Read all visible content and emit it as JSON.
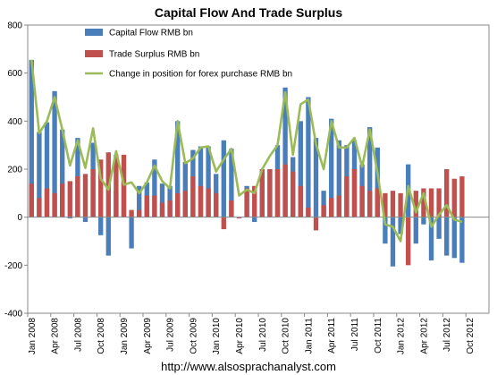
{
  "chart_data": {
    "type": "bar",
    "title": "Capital Flow And Trade Surplus",
    "footer": "http://www.alsosprachanalyst.com",
    "ylim": [
      -400,
      800
    ],
    "yticks": [
      -400,
      -200,
      0,
      200,
      400,
      600,
      800
    ],
    "x_tick_labels": [
      "Jan 2008",
      "Apr 2008",
      "Jul 2008",
      "Oct 2008",
      "Jan 2009",
      "Apr 2009",
      "Jul 2009",
      "Oct 2009",
      "Jan 2010",
      "Apr 2010",
      "Jul 2010",
      "Oct 2010",
      "Jan 2011",
      "Apr 2011",
      "Jul 2011",
      "Oct 2011",
      "Jan 2012",
      "Apr 2012",
      "Jul 2012",
      "Oct 2012"
    ],
    "grid": false,
    "legend_position": "top-left",
    "categories": [
      "2008-01",
      "2008-02",
      "2008-03",
      "2008-04",
      "2008-05",
      "2008-06",
      "2008-07",
      "2008-08",
      "2008-09",
      "2008-10",
      "2008-11",
      "2008-12",
      "2009-01",
      "2009-02",
      "2009-03",
      "2009-04",
      "2009-05",
      "2009-06",
      "2009-07",
      "2009-08",
      "2009-09",
      "2009-10",
      "2009-11",
      "2009-12",
      "2010-01",
      "2010-02",
      "2010-03",
      "2010-04",
      "2010-05",
      "2010-06",
      "2010-07",
      "2010-08",
      "2010-09",
      "2010-10",
      "2010-11",
      "2010-12",
      "2011-01",
      "2011-02",
      "2011-03",
      "2011-04",
      "2011-05",
      "2011-06",
      "2011-07",
      "2011-08",
      "2011-09",
      "2011-10",
      "2011-11",
      "2011-12",
      "2012-01",
      "2012-02",
      "2012-03",
      "2012-04",
      "2012-05",
      "2012-06",
      "2012-07",
      "2012-08",
      "2012-09",
      "2012-10",
      "2012-11",
      "2012-12"
    ],
    "series": [
      {
        "name": "Capital Flow RMB bn",
        "kind": "bar",
        "color": "#4A7EBB",
        "values": [
          655,
          355,
          395,
          525,
          365,
          -5,
          330,
          -20,
          310,
          -75,
          -160,
          110,
          145,
          -130,
          130,
          145,
          240,
          140,
          130,
          400,
          230,
          280,
          295,
          295,
          180,
          320,
          285,
          0,
          130,
          -20,
          190,
          200,
          300,
          540,
          250,
          400,
          500,
          330,
          110,
          410,
          320,
          300,
          320,
          220,
          375,
          290,
          -110,
          -205,
          -70,
          220,
          -110,
          -30,
          -180,
          -90,
          -160,
          -170,
          -190,
          0,
          0,
          0
        ]
      },
      {
        "name": "Trade Surplus RMB bn",
        "kind": "bar",
        "color": "#C0504D",
        "values": [
          140,
          80,
          120,
          100,
          140,
          150,
          170,
          180,
          200,
          240,
          270,
          260,
          260,
          30,
          30,
          90,
          90,
          60,
          70,
          100,
          110,
          170,
          130,
          120,
          100,
          -50,
          70,
          -5,
          120,
          130,
          200,
          200,
          200,
          220,
          190,
          130,
          40,
          -55,
          50,
          80,
          90,
          170,
          200,
          130,
          110,
          120,
          100,
          110,
          100,
          -200,
          110,
          120,
          120,
          120,
          200,
          160,
          170,
          0,
          0,
          0
        ]
      },
      {
        "name": "Change in position for forex purchase RMB bn",
        "kind": "line",
        "color": "#9BBB59",
        "values": [
          655,
          350,
          400,
          500,
          365,
          215,
          320,
          205,
          370,
          160,
          115,
          275,
          135,
          145,
          100,
          145,
          215,
          150,
          120,
          400,
          225,
          245,
          290,
          295,
          190,
          240,
          285,
          90,
          115,
          100,
          200,
          255,
          300,
          520,
          260,
          470,
          490,
          305,
          200,
          400,
          290,
          290,
          330,
          210,
          365,
          185,
          -30,
          -40,
          -100,
          130,
          20,
          100,
          -40,
          10,
          50,
          -10,
          -20,
          0,
          0,
          0
        ]
      }
    ]
  }
}
